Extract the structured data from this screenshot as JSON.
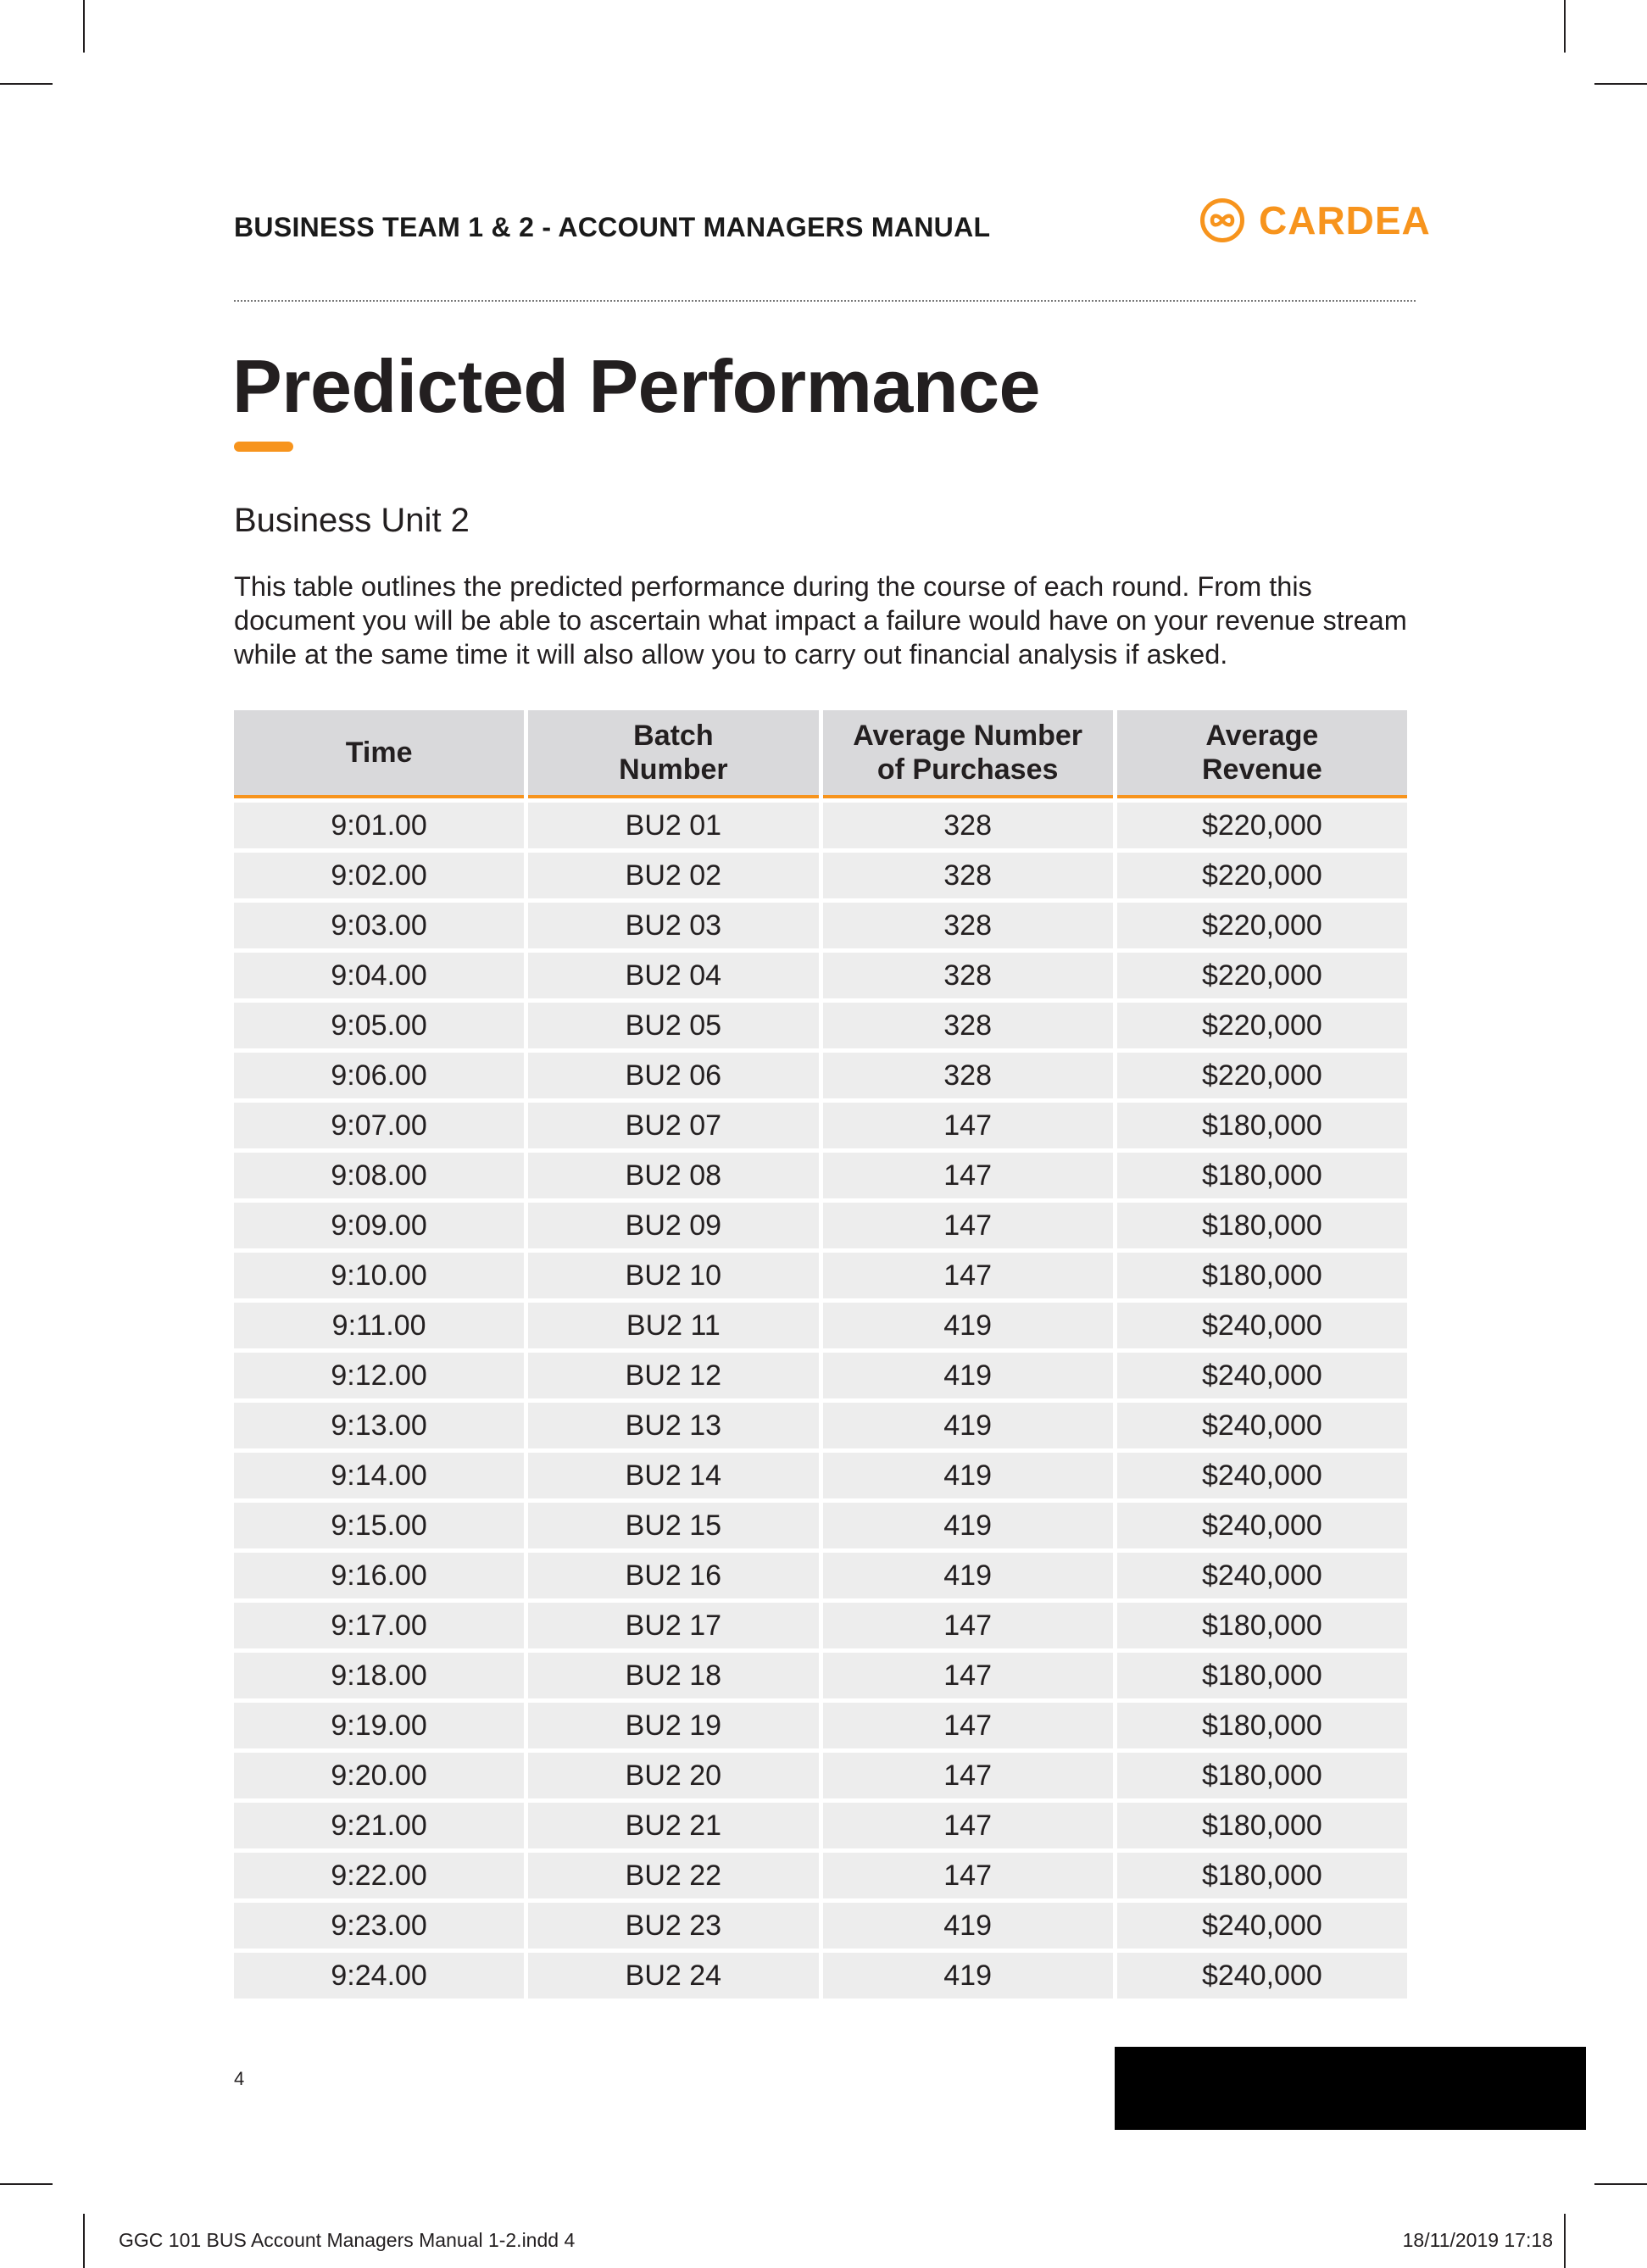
{
  "header": {
    "manual_title": "BUSINESS TEAM 1 & 2 - ACCOUNT MANAGERS MANUAL",
    "logo_text": "CARDEA",
    "logo_icon": "infinity-circle-icon",
    "accent_color": "#f7941d"
  },
  "main": {
    "title": "Predicted Performance",
    "section_heading": "Business Unit 2",
    "intro_text": "This table outlines the predicted performance during the course of each round. From this document you will be able to ascertain what impact a failure would have on your revenue stream while at the same time it will also allow you to carry out financial analysis if asked."
  },
  "table": {
    "headers": [
      {
        "line1": "Time",
        "line2": ""
      },
      {
        "line1": "Batch",
        "line2": "Number"
      },
      {
        "line1": "Average Number",
        "line2": "of Purchases"
      },
      {
        "line1": "Average",
        "line2": "Revenue"
      }
    ],
    "rows": [
      [
        "9:01.00",
        "BU2 01",
        "328",
        "$220,000"
      ],
      [
        "9:02.00",
        "BU2 02",
        "328",
        "$220,000"
      ],
      [
        "9:03.00",
        "BU2 03",
        "328",
        "$220,000"
      ],
      [
        "9:04.00",
        "BU2 04",
        "328",
        "$220,000"
      ],
      [
        "9:05.00",
        "BU2 05",
        "328",
        "$220,000"
      ],
      [
        "9:06.00",
        "BU2 06",
        "328",
        "$220,000"
      ],
      [
        "9:07.00",
        "BU2 07",
        "147",
        "$180,000"
      ],
      [
        "9:08.00",
        "BU2 08",
        "147",
        "$180,000"
      ],
      [
        "9:09.00",
        "BU2 09",
        "147",
        "$180,000"
      ],
      [
        "9:10.00",
        "BU2 10",
        "147",
        "$180,000"
      ],
      [
        "9:11.00",
        "BU2 11",
        "419",
        "$240,000"
      ],
      [
        "9:12.00",
        "BU2 12",
        "419",
        "$240,000"
      ],
      [
        "9:13.00",
        "BU2 13",
        "419",
        "$240,000"
      ],
      [
        "9:14.00",
        "BU2 14",
        "419",
        "$240,000"
      ],
      [
        "9:15.00",
        "BU2 15",
        "419",
        "$240,000"
      ],
      [
        "9:16.00",
        "BU2 16",
        "419",
        "$240,000"
      ],
      [
        "9:17.00",
        "BU2 17",
        "147",
        "$180,000"
      ],
      [
        "9:18.00",
        "BU2 18",
        "147",
        "$180,000"
      ],
      [
        "9:19.00",
        "BU2 19",
        "147",
        "$180,000"
      ],
      [
        "9:20.00",
        "BU2 20",
        "147",
        "$180,000"
      ],
      [
        "9:21.00",
        "BU2 21",
        "147",
        "$180,000"
      ],
      [
        "9:22.00",
        "BU2 22",
        "147",
        "$180,000"
      ],
      [
        "9:23.00",
        "BU2 23",
        "419",
        "$240,000"
      ],
      [
        "9:24.00",
        "BU2 24",
        "419",
        "$240,000"
      ]
    ]
  },
  "footer": {
    "page_number": "4",
    "slug_left": "GGC 101 BUS Account Managers Manual 1-2.indd   4",
    "slug_right": "18/11/2019   17:18"
  }
}
